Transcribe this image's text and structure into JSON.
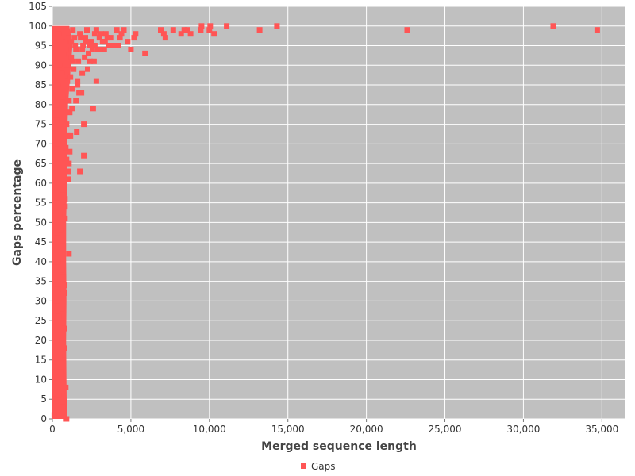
{
  "chart_data": {
    "type": "scatter",
    "xlabel": "Merged sequence length",
    "ylabel": "Gaps percentage",
    "xlim": [
      0,
      36500
    ],
    "ylim": [
      0,
      105
    ],
    "x_ticks": [
      0,
      5000,
      10000,
      15000,
      20000,
      25000,
      30000,
      35000
    ],
    "x_tick_labels": [
      "0",
      "5,000",
      "10,000",
      "15,000",
      "20,000",
      "25,000",
      "30,000",
      "35,000"
    ],
    "y_ticks": [
      0,
      5,
      10,
      15,
      20,
      25,
      30,
      35,
      40,
      45,
      50,
      55,
      60,
      65,
      70,
      75,
      80,
      85,
      90,
      95,
      100,
      105
    ],
    "y_tick_labels": [
      "0",
      "5",
      "10",
      "15",
      "20",
      "25",
      "30",
      "35",
      "40",
      "45",
      "50",
      "55",
      "60",
      "65",
      "70",
      "75",
      "80",
      "85",
      "90",
      "95",
      "100",
      "105"
    ],
    "grid": true,
    "legend_position": "bottom-center",
    "colors": {
      "series": "#ff5555",
      "plot_background": "#c0c0c0",
      "grid": "#ffffff"
    },
    "series": [
      {
        "name": "Gaps",
        "points": [
          [
            34700,
            99
          ],
          [
            31900,
            100
          ],
          [
            22600,
            99
          ],
          [
            14300,
            100
          ],
          [
            13200,
            99
          ],
          [
            11100,
            100
          ],
          [
            10300,
            98
          ],
          [
            10050,
            100
          ],
          [
            10000,
            99
          ],
          [
            9500,
            100
          ],
          [
            9450,
            99
          ],
          [
            8800,
            98
          ],
          [
            8600,
            99
          ],
          [
            8400,
            99
          ],
          [
            8200,
            98
          ],
          [
            7700,
            99
          ],
          [
            7200,
            97
          ],
          [
            7100,
            98
          ],
          [
            6900,
            99
          ],
          [
            5900,
            93
          ],
          [
            5300,
            98
          ],
          [
            5200,
            97
          ],
          [
            5000,
            94
          ],
          [
            4800,
            96
          ],
          [
            4550,
            99
          ],
          [
            4400,
            98
          ],
          [
            4300,
            97
          ],
          [
            4100,
            99
          ],
          [
            4200,
            95
          ],
          [
            3900,
            95
          ],
          [
            3700,
            97
          ],
          [
            3600,
            95
          ],
          [
            3500,
            97
          ],
          [
            3400,
            98
          ],
          [
            3300,
            94
          ],
          [
            3200,
            96
          ],
          [
            3100,
            98
          ],
          [
            3000,
            97
          ],
          [
            2900,
            94
          ],
          [
            2800,
            99
          ],
          [
            2800,
            86
          ],
          [
            2700,
            98
          ],
          [
            2650,
            91
          ],
          [
            2600,
            79
          ],
          [
            2500,
            96
          ],
          [
            2400,
            91
          ],
          [
            2300,
            93
          ],
          [
            2250,
            89
          ],
          [
            2200,
            99
          ],
          [
            2100,
            97
          ],
          [
            2000,
            75
          ],
          [
            2000,
            67
          ],
          [
            1950,
            95
          ],
          [
            1900,
            88
          ],
          [
            1850,
            83
          ],
          [
            1800,
            97
          ],
          [
            1750,
            63
          ],
          [
            1700,
            83
          ],
          [
            1600,
            86
          ],
          [
            1550,
            73
          ],
          [
            1500,
            81
          ],
          [
            1500,
            94
          ],
          [
            1400,
            97
          ],
          [
            1300,
            99
          ],
          [
            1250,
            84
          ],
          [
            1200,
            92
          ],
          [
            1150,
            72
          ],
          [
            1100,
            78
          ],
          [
            1100,
            68
          ],
          [
            1050,
            81
          ],
          [
            1000,
            63
          ],
          [
            1000,
            61
          ],
          [
            1050,
            42
          ],
          [
            950,
            90
          ],
          [
            900,
            75
          ],
          [
            900,
            66
          ],
          [
            850,
            8
          ],
          [
            900,
            0
          ],
          [
            800,
            96
          ],
          [
            800,
            56
          ],
          [
            800,
            54
          ],
          [
            800,
            51
          ],
          [
            780,
            34
          ],
          [
            760,
            32
          ],
          [
            750,
            23
          ],
          [
            750,
            18
          ],
          [
            700,
            36
          ],
          [
            650,
            44
          ],
          [
            600,
            28
          ],
          [
            550,
            48
          ],
          [
            500,
            60
          ],
          [
            450,
            52
          ],
          [
            400,
            98
          ],
          [
            350,
            40
          ],
          [
            300,
            30
          ],
          [
            250,
            20
          ],
          [
            200,
            10
          ],
          [
            150,
            5
          ],
          [
            120,
            1
          ],
          [
            300,
            70
          ],
          [
            350,
            85
          ],
          [
            450,
            90
          ],
          [
            650,
            82
          ],
          [
            750,
            62
          ],
          [
            700,
            15
          ],
          [
            650,
            3
          ],
          [
            550,
            12
          ],
          [
            400,
            26
          ],
          [
            300,
            46
          ],
          [
            200,
            64
          ],
          [
            250,
            76
          ],
          [
            500,
            58
          ],
          [
            600,
            88
          ],
          [
            700,
            93
          ],
          [
            950,
            86
          ],
          [
            1350,
            89
          ],
          [
            1650,
            91
          ],
          [
            2050,
            92
          ],
          [
            2350,
            95
          ],
          [
            2550,
            94
          ],
          [
            1450,
            95
          ],
          [
            1750,
            98
          ],
          [
            1900,
            94
          ],
          [
            2150,
            96
          ],
          [
            2700,
            95
          ],
          [
            3050,
            94
          ],
          [
            3350,
            96
          ],
          [
            1200,
            96
          ],
          [
            1000,
            97
          ],
          [
            850,
            94
          ],
          [
            1300,
            91
          ],
          [
            1600,
            85
          ],
          [
            1150,
            87
          ],
          [
            1250,
            79
          ],
          [
            950,
            72
          ],
          [
            1050,
            65
          ],
          [
            850,
            69
          ],
          [
            700,
            57
          ],
          [
            600,
            38
          ],
          [
            500,
            22
          ],
          [
            450,
            16
          ],
          [
            400,
            6
          ],
          [
            350,
            33
          ],
          [
            300,
            55
          ],
          [
            250,
            80
          ],
          [
            200,
            50
          ],
          [
            150,
            40
          ]
        ]
      }
    ]
  }
}
